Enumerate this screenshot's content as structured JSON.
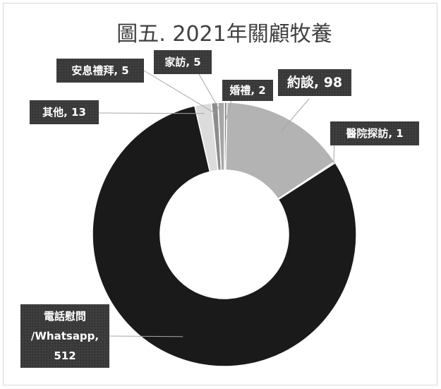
{
  "chart_data": {
    "type": "pie",
    "variant": "doughnut",
    "title": "圖五. 2021年關顧牧養",
    "legend": "none",
    "series": [
      {
        "name": "",
        "slices": [
          {
            "category": "婚禮",
            "value": 2,
            "color": "#7f7f7f",
            "label_lines": [
              "婚禮, 2"
            ]
          },
          {
            "category": "約談",
            "value": 98,
            "color": "#b3b3b3",
            "label_lines": [
              "約談, 98"
            ]
          },
          {
            "category": "醫院探訪",
            "value": 1,
            "color": "#5a5a5a",
            "label_lines": [
              "醫院探訪, 1"
            ]
          },
          {
            "category": "電話慰問/Whatsapp",
            "value": 512,
            "color": "#1a1a1a",
            "label_lines": [
              "電話慰問",
              "/Whatsapp,",
              "512"
            ]
          },
          {
            "category": "其他",
            "value": 13,
            "color": "#dcdcdc",
            "label_lines": [
              "其他, 13"
            ]
          },
          {
            "category": "安息禮拜",
            "value": 5,
            "color": "#8c8c8c",
            "label_lines": [
              "安息禮拜, 5"
            ]
          },
          {
            "category": "家訪",
            "value": 5,
            "color": "#a6a6a6",
            "label_lines": [
              "家訪, 5"
            ]
          }
        ]
      }
    ]
  }
}
